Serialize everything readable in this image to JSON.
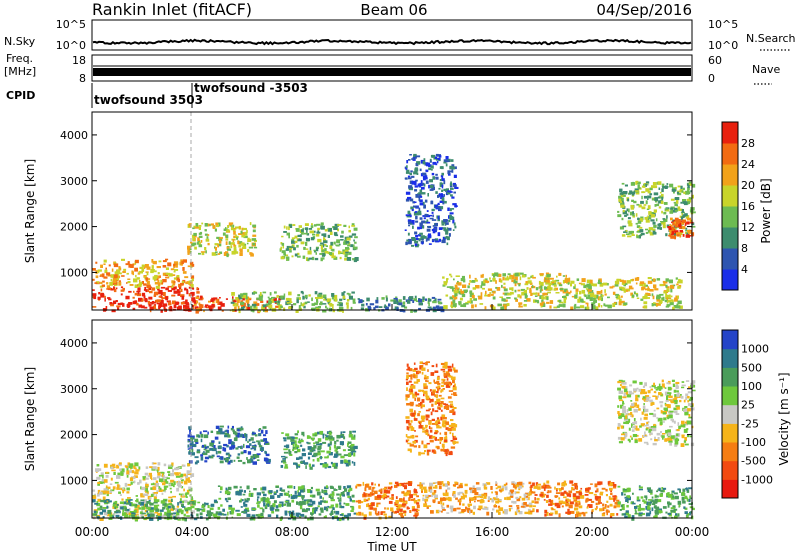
{
  "header": {
    "station": "Rankin Inlet (fitACF)",
    "beam": "Beam 06",
    "date": "04/Sep/2016"
  },
  "params": {
    "nsky_label": "N.Sky",
    "nsearch_label": "N.Search",
    "freq_label": "Freq.",
    "freq_unit": "[MHz]",
    "nave_label": "Nave",
    "cpid_label": "CPID",
    "left_ticks_top": [
      "10^5",
      "10^0"
    ],
    "right_ticks_top": [
      "10^5",
      "10^0"
    ],
    "left_ticks_freq": [
      "18",
      "8"
    ],
    "right_ticks_nave": [
      "60",
      "0"
    ],
    "cpid_segments": [
      {
        "name": "twofsound 3503",
        "start_h": 0.0
      },
      {
        "name": "twofsound -3503",
        "start_h": 4.0
      }
    ]
  },
  "chart_data": [
    {
      "type": "heatmap",
      "title": "",
      "xlabel": "Time UT",
      "ylabel": "Slant Range [km]",
      "x_ticks": [
        "00:00",
        "04:00",
        "08:00",
        "12:00",
        "16:00",
        "20:00",
        "00:00"
      ],
      "xlim_hours": [
        0,
        24
      ],
      "y_ticks": [
        "1000",
        "2000",
        "3000",
        "4000"
      ],
      "ylim": [
        180,
        4500
      ],
      "colorbar": {
        "label": "Power [dB]",
        "ticks": [
          "4",
          "8",
          "12",
          "16",
          "20",
          "24",
          "28"
        ],
        "colors": [
          "#1a2ee8",
          "#2e55b0",
          "#3d8c6e",
          "#6dbb52",
          "#c8d42a",
          "#f2a21a",
          "#f26b12",
          "#e8200e"
        ]
      },
      "regions": [
        {
          "t0": 0.0,
          "t1": 4.2,
          "r0": 180,
          "r1": 700,
          "level": 7
        },
        {
          "t0": 0.0,
          "t1": 4.0,
          "r0": 700,
          "r1": 1300,
          "level": 5
        },
        {
          "t0": 4.0,
          "t1": 7.5,
          "r0": 180,
          "r1": 500,
          "level": 6
        },
        {
          "t0": 3.8,
          "t1": 6.5,
          "r0": 1400,
          "r1": 2100,
          "level": 4
        },
        {
          "t0": 5.5,
          "t1": 10.5,
          "r0": 180,
          "r1": 600,
          "level": 3
        },
        {
          "t0": 7.5,
          "t1": 10.5,
          "r0": 1300,
          "r1": 2100,
          "level": 3
        },
        {
          "t0": 10.5,
          "t1": 14.0,
          "r0": 180,
          "r1": 500,
          "level": 2
        },
        {
          "t0": 12.5,
          "t1": 14.5,
          "r0": 1600,
          "r1": 3600,
          "level": 1
        },
        {
          "t0": 14.0,
          "t1": 19.0,
          "r0": 250,
          "r1": 1000,
          "level": 4
        },
        {
          "t0": 19.0,
          "t1": 23.5,
          "r0": 250,
          "r1": 900,
          "level": 4
        },
        {
          "t0": 21.0,
          "t1": 24.0,
          "r0": 1800,
          "r1": 3000,
          "level": 3
        },
        {
          "t0": 23.0,
          "t1": 24.0,
          "r0": 1800,
          "r1": 2200,
          "level": 6
        }
      ]
    },
    {
      "type": "heatmap",
      "title": "",
      "xlabel": "Time UT",
      "ylabel": "Slant Range [km]",
      "x_ticks": [
        "00:00",
        "04:00",
        "08:00",
        "12:00",
        "16:00",
        "20:00",
        "00:00"
      ],
      "xlim_hours": [
        0,
        24
      ],
      "y_ticks": [
        "1000",
        "2000",
        "3000",
        "4000"
      ],
      "ylim": [
        180,
        4500
      ],
      "colorbar": {
        "label": "Velocity [m s⁻¹]",
        "ticks": [
          "1000",
          "500",
          "100",
          "25",
          "-25",
          "-100",
          "-500",
          "-1000"
        ],
        "colors": [
          "#2444c8",
          "#2f7a8c",
          "#4a9c5a",
          "#6ec83c",
          "#c8c8c4",
          "#f5b41a",
          "#f57d12",
          "#f24a10",
          "#e81a10"
        ]
      },
      "regions": [
        {
          "t0": 0.0,
          "t1": 4.0,
          "r0": 180,
          "r1": 1400,
          "level": 4
        },
        {
          "t0": 0.0,
          "t1": 5.0,
          "r0": 180,
          "r1": 600,
          "level": 2
        },
        {
          "t0": 3.8,
          "t1": 7.0,
          "r0": 1400,
          "r1": 2200,
          "level": 1
        },
        {
          "t0": 5.0,
          "t1": 10.5,
          "r0": 180,
          "r1": 900,
          "level": 2
        },
        {
          "t0": 7.5,
          "t1": 10.5,
          "r0": 1300,
          "r1": 2100,
          "level": 2
        },
        {
          "t0": 10.5,
          "t1": 13.0,
          "r0": 200,
          "r1": 1000,
          "level": 6
        },
        {
          "t0": 12.5,
          "t1": 14.5,
          "r0": 1600,
          "r1": 3600,
          "level": 6
        },
        {
          "t0": 13.0,
          "t1": 17.5,
          "r0": 300,
          "r1": 1000,
          "level": 5
        },
        {
          "t0": 17.5,
          "t1": 21.0,
          "r0": 250,
          "r1": 1000,
          "level": 6
        },
        {
          "t0": 21.0,
          "t1": 24.0,
          "r0": 200,
          "r1": 900,
          "level": 2
        },
        {
          "t0": 21.0,
          "t1": 24.0,
          "r0": 1800,
          "r1": 3200,
          "level": 4
        }
      ]
    }
  ]
}
